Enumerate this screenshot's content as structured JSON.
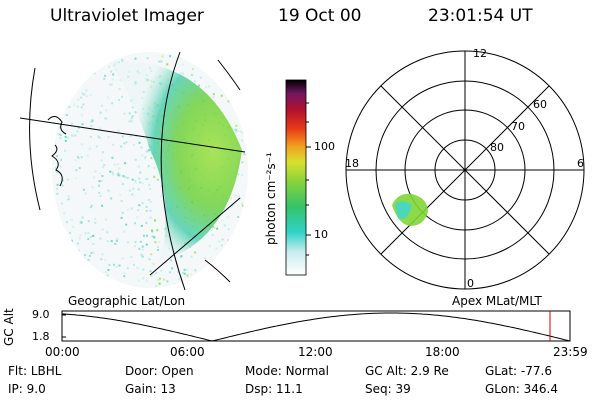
{
  "header": {
    "title": "Ultraviolet Imager",
    "date": "19 Oct 00",
    "time": "23:01:54 UT"
  },
  "geo_panel": {
    "label": "Geographic Lat/Lon"
  },
  "colorbar": {
    "unit_label": "photon cm⁻²s⁻¹",
    "ticks": [
      "100",
      "10"
    ]
  },
  "polar_panel": {
    "label": "Apex MLat/MLT",
    "mlt_labels": {
      "top": "12",
      "left": "18",
      "right": "6",
      "bottom": "0"
    },
    "mlat_labels": [
      "60",
      "70",
      "80"
    ]
  },
  "altitude_plot": {
    "ylabel": "GC Alt",
    "yticks": [
      "9.0",
      "1.8"
    ],
    "xticks": [
      "00:00",
      "06:00",
      "12:00",
      "18:00",
      "23:59"
    ]
  },
  "status": {
    "row1": [
      {
        "label": "Flt:",
        "value": "LBHL"
      },
      {
        "label": "Door:",
        "value": "Open"
      },
      {
        "label": "Mode:",
        "value": "Normal"
      },
      {
        "label": "GC Alt:",
        "value": "2.9 Re"
      },
      {
        "label": "GLat:",
        "value": "-77.6"
      }
    ],
    "row2": [
      {
        "label": "IP:",
        "value": "9.0"
      },
      {
        "label": "Gain:",
        "value": "13"
      },
      {
        "label": "Dsp:",
        "value": "11.1"
      },
      {
        "label": "Seq:",
        "value": "39"
      },
      {
        "label": "GLon:",
        "value": "346.4"
      }
    ]
  },
  "colors": {
    "aurora_green": "#7fd636",
    "aurora_cyan": "#3fd6d0",
    "marker_red": "#d40000"
  }
}
